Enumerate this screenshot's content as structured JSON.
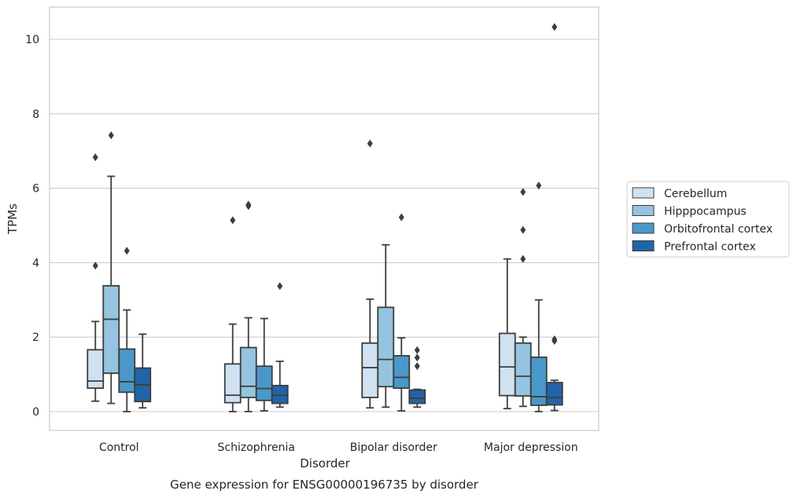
{
  "chart_data": {
    "type": "box",
    "title": "",
    "caption": "Gene expression for ENSG00000196735 by disorder",
    "xlabel": "Disorder",
    "ylabel": "TPMs",
    "ylim": [
      -0.5,
      10.85
    ],
    "yticks": [
      0,
      2,
      4,
      6,
      8,
      10
    ],
    "grid": "horizontal",
    "legend_position": "right",
    "categories": [
      "Control",
      "Schizophrenia",
      "Bipolar disorder",
      "Major depression"
    ],
    "series": [
      {
        "name": "Cerebellum",
        "color": "#d0e1f2",
        "boxes": [
          {
            "q1": 0.63,
            "median": 0.82,
            "q3": 1.66,
            "whisker_low": 0.28,
            "whisker_high": 2.42,
            "outliers": [
              3.92,
              6.83
            ]
          },
          {
            "q1": 0.24,
            "median": 0.44,
            "q3": 1.28,
            "whisker_low": 0.0,
            "whisker_high": 2.35,
            "outliers": [
              5.14
            ]
          },
          {
            "q1": 0.38,
            "median": 1.18,
            "q3": 1.84,
            "whisker_low": 0.1,
            "whisker_high": 3.02,
            "outliers": [
              7.2
            ]
          },
          {
            "q1": 0.43,
            "median": 1.2,
            "q3": 2.1,
            "whisker_low": 0.08,
            "whisker_high": 4.1,
            "outliers": []
          }
        ]
      },
      {
        "name": "Hipppocampus",
        "color": "#94c4df",
        "boxes": [
          {
            "q1": 1.03,
            "median": 2.48,
            "q3": 3.38,
            "whisker_low": 0.22,
            "whisker_high": 6.32,
            "outliers": [
              7.42
            ]
          },
          {
            "q1": 0.38,
            "median": 0.68,
            "q3": 1.72,
            "whisker_low": 0.0,
            "whisker_high": 2.52,
            "outliers": [
              5.52,
              5.56
            ]
          },
          {
            "q1": 0.67,
            "median": 1.4,
            "q3": 2.8,
            "whisker_low": 0.12,
            "whisker_high": 4.48,
            "outliers": []
          },
          {
            "q1": 0.42,
            "median": 0.95,
            "q3": 1.84,
            "whisker_low": 0.14,
            "whisker_high": 2.0,
            "outliers": [
              4.1,
              4.88,
              5.9
            ]
          }
        ]
      },
      {
        "name": "Orbitofrontal cortex",
        "color": "#4a98c9",
        "boxes": [
          {
            "q1": 0.52,
            "median": 0.8,
            "q3": 1.68,
            "whisker_low": 0.0,
            "whisker_high": 2.73,
            "outliers": [
              4.32
            ]
          },
          {
            "q1": 0.3,
            "median": 0.62,
            "q3": 1.22,
            "whisker_low": 0.02,
            "whisker_high": 2.5,
            "outliers": []
          },
          {
            "q1": 0.63,
            "median": 0.92,
            "q3": 1.5,
            "whisker_low": 0.02,
            "whisker_high": 1.98,
            "outliers": [
              5.22
            ]
          },
          {
            "q1": 0.17,
            "median": 0.4,
            "q3": 1.46,
            "whisker_low": 0.0,
            "whisker_high": 3.0,
            "outliers": [
              6.07
            ]
          }
        ]
      },
      {
        "name": "Prefrontal cortex",
        "color": "#2264a8",
        "boxes": [
          {
            "q1": 0.27,
            "median": 0.72,
            "q3": 1.17,
            "whisker_low": 0.1,
            "whisker_high": 2.08,
            "outliers": []
          },
          {
            "q1": 0.22,
            "median": 0.44,
            "q3": 0.7,
            "whisker_low": 0.12,
            "whisker_high": 1.35,
            "outliers": [
              3.37
            ]
          },
          {
            "q1": 0.22,
            "median": 0.36,
            "q3": 0.58,
            "whisker_low": 0.12,
            "whisker_high": 0.6,
            "outliers": [
              1.22,
              1.45,
              1.65
            ]
          },
          {
            "q1": 0.18,
            "median": 0.38,
            "q3": 0.78,
            "whisker_low": 0.03,
            "whisker_high": 0.84,
            "outliers": [
              1.9,
              1.94,
              10.33
            ]
          }
        ]
      }
    ]
  }
}
